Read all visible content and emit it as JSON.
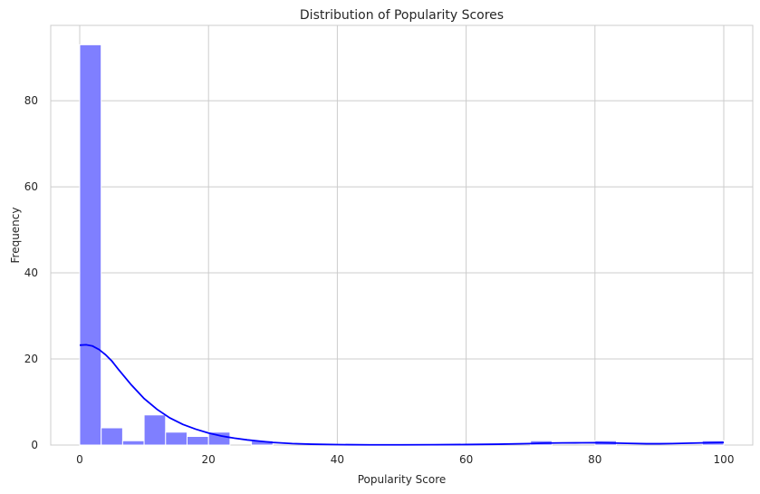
{
  "chart_data": {
    "type": "histogram",
    "title": "Distribution of Popularity Scores",
    "xlabel": "Popularity Score",
    "ylabel": "Frequency",
    "xlim": [
      -4.5,
      104.5
    ],
    "ylim": [
      0,
      97.5
    ],
    "x_ticks": [
      0,
      20,
      40,
      60,
      80,
      100
    ],
    "y_ticks": [
      0,
      20,
      40,
      60,
      80
    ],
    "grid": true,
    "bin_edges": [
      0,
      3.333,
      6.667,
      10,
      13.333,
      16.667,
      20,
      23.333,
      26.667,
      30,
      33.333,
      36.667,
      40,
      43.333,
      46.667,
      50,
      53.333,
      56.667,
      60,
      63.333,
      66.667,
      70,
      73.333,
      76.667,
      80,
      83.333,
      86.667,
      90,
      93.333,
      96.667,
      100
    ],
    "counts": [
      93,
      4,
      1,
      7,
      3,
      2,
      3,
      0,
      1,
      0,
      0,
      0,
      0,
      0,
      0,
      0,
      0,
      0,
      0,
      0,
      0,
      1,
      0,
      0,
      1,
      0,
      0,
      0,
      0,
      1
    ],
    "bar_color": "#7f7fff",
    "kde": {
      "color": "#0000ff",
      "x": [
        0,
        1,
        2,
        3,
        4,
        5,
        6,
        8,
        10,
        12,
        14,
        16,
        18,
        20,
        22,
        24,
        26,
        28,
        30,
        33,
        36,
        40,
        45,
        50,
        55,
        60,
        65,
        70,
        72,
        75,
        78,
        80,
        82,
        85,
        88,
        90,
        92,
        95,
        98,
        100
      ],
      "y": [
        23.2,
        23.3,
        23.0,
        22.2,
        21.0,
        19.5,
        17.6,
        14.0,
        10.8,
        8.3,
        6.3,
        4.8,
        3.7,
        2.8,
        2.1,
        1.6,
        1.2,
        0.9,
        0.6,
        0.35,
        0.2,
        0.1,
        0.05,
        0.05,
        0.08,
        0.12,
        0.2,
        0.35,
        0.45,
        0.5,
        0.52,
        0.55,
        0.5,
        0.4,
        0.3,
        0.3,
        0.35,
        0.45,
        0.55,
        0.6
      ]
    }
  }
}
